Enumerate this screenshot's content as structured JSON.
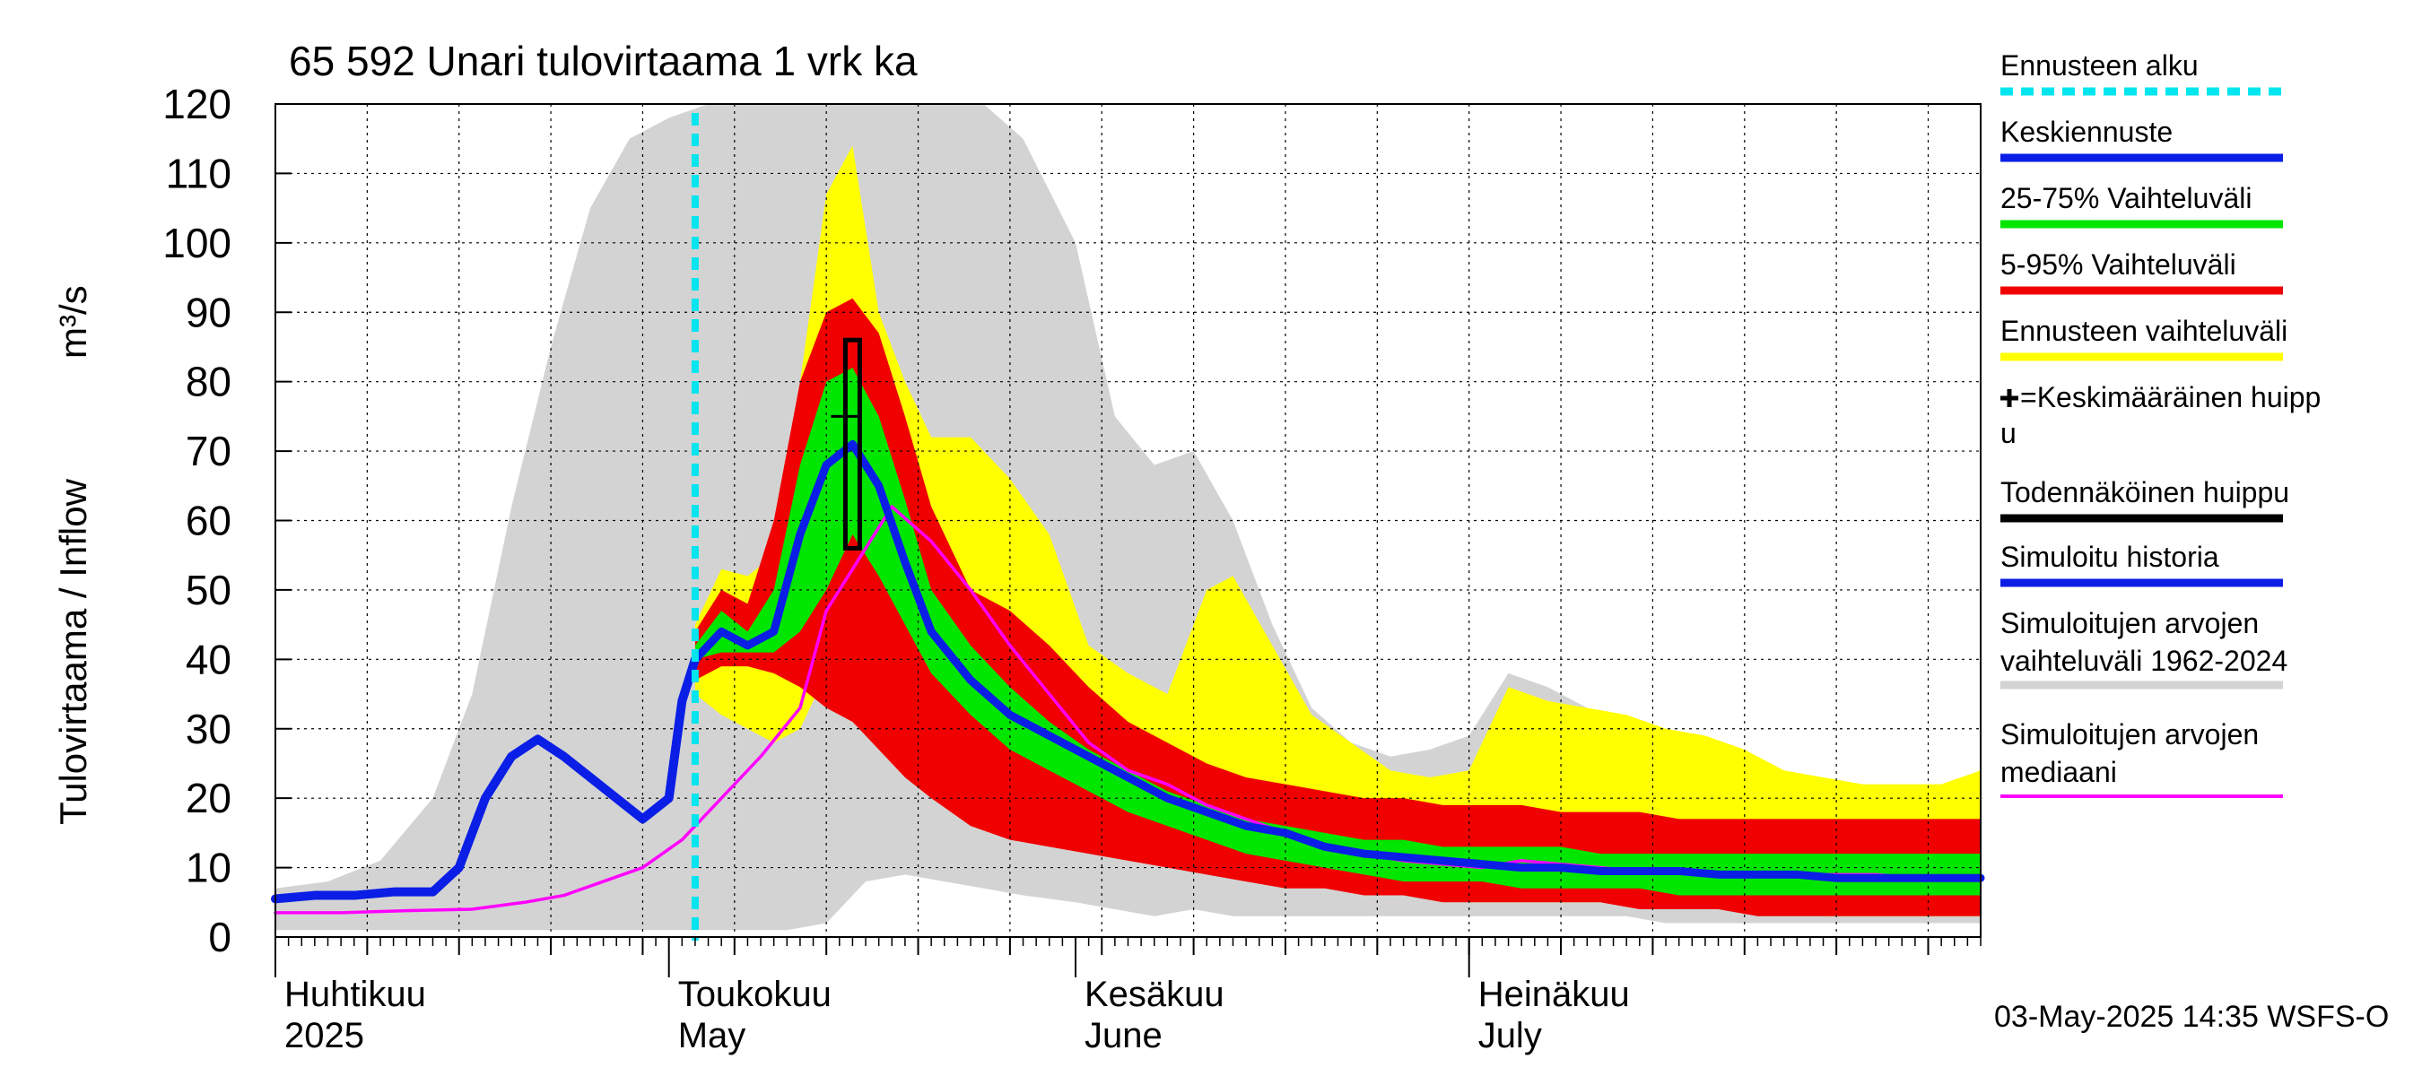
{
  "chart_data": {
    "type": "area",
    "title": "65 592 Unari tulovirtaama 1 vrk ka",
    "ylabel": "Tulovirtaama / Inflow",
    "yunit": "m³/s",
    "ylim": [
      0,
      120
    ],
    "yticks": [
      0,
      10,
      20,
      30,
      40,
      50,
      60,
      70,
      80,
      90,
      100,
      110,
      120
    ],
    "xlim": [
      "2025-04-01",
      "2025-08-09"
    ],
    "grid": true,
    "legend_position": "right",
    "month_labels": [
      {
        "date": "2025-04-01",
        "fi": "Huhtikuu",
        "en": "2025"
      },
      {
        "date": "2025-05-01",
        "fi": "Toukokuu",
        "en": "May"
      },
      {
        "date": "2025-06-01",
        "fi": "Kesäkuu",
        "en": "June"
      },
      {
        "date": "2025-07-01",
        "fi": "Heinäkuu",
        "en": "July"
      }
    ],
    "forecast_start": "2025-05-03",
    "mean_peak": {
      "date": "2025-05-15",
      "value": 75
    },
    "probable_peak": {
      "date": "2025-05-15",
      "low": 56,
      "high": 86
    },
    "timestamp": "03-May-2025 14:35 WSFS-O",
    "legend": [
      {
        "key": "forecast_start",
        "label": "Ennusteen alku",
        "color": "#00e5ee",
        "style": "dashed"
      },
      {
        "key": "mean_forecast",
        "label": "Keskiennuste",
        "color": "#0a1ee6"
      },
      {
        "key": "range_25_75",
        "label": "25-75% Vaihteluväli",
        "color": "#00e600"
      },
      {
        "key": "range_5_95",
        "label": "5-95% Vaihteluväli",
        "color": "#f00000"
      },
      {
        "key": "forecast_range",
        "label": "Ennusteen vaihteluväli",
        "color": "#ffff00"
      },
      {
        "key": "mean_peak",
        "label": "=Keskimääräinen huippu",
        "color": "#000000",
        "marker": "plus"
      },
      {
        "key": "probable_peak",
        "label": "Todennäköinen huippu",
        "color": "#000000"
      },
      {
        "key": "simulated_history",
        "label": "Simuloitu historia",
        "color": "#0a1ee6"
      },
      {
        "key": "hist_range",
        "label": "Simuloitujen arvojen vaihteluväli 1962-2024",
        "color": "#d3d3d3"
      },
      {
        "key": "hist_median",
        "label": "Simuloitujen arvojen mediaani",
        "color": "#ff00ff"
      }
    ],
    "hist_range": {
      "x": [
        "2025-04-01",
        "2025-04-05",
        "2025-04-09",
        "2025-04-13",
        "2025-04-16",
        "2025-04-19",
        "2025-04-22",
        "2025-04-25",
        "2025-04-28",
        "2025-05-01",
        "2025-05-04",
        "2025-05-07",
        "2025-05-10",
        "2025-05-13",
        "2025-05-16",
        "2025-05-19",
        "2025-05-22",
        "2025-05-25",
        "2025-05-28",
        "2025-06-01",
        "2025-06-04",
        "2025-06-07",
        "2025-06-10",
        "2025-06-13",
        "2025-06-16",
        "2025-06-19",
        "2025-06-22",
        "2025-06-25",
        "2025-06-28",
        "2025-07-01",
        "2025-07-04",
        "2025-07-07",
        "2025-07-10",
        "2025-07-13",
        "2025-07-16",
        "2025-07-19",
        "2025-07-22",
        "2025-07-25",
        "2025-07-28",
        "2025-07-31",
        "2025-08-03",
        "2025-08-06",
        "2025-08-09"
      ],
      "low": [
        1,
        1,
        1,
        1,
        1,
        1,
        1,
        1,
        1,
        1,
        1,
        1,
        1,
        2,
        8,
        9,
        8,
        7,
        6,
        5,
        4,
        3,
        4,
        3,
        3,
        3,
        3,
        3,
        3,
        3,
        3,
        3,
        3,
        3,
        2,
        2,
        2,
        2,
        2,
        2,
        2,
        2,
        2
      ],
      "high": [
        7,
        8,
        11,
        20,
        35,
        62,
        85,
        105,
        115,
        118,
        120,
        120,
        120,
        120,
        120,
        120,
        120,
        120,
        115,
        100,
        75,
        68,
        70,
        60,
        45,
        33,
        28,
        26,
        27,
        29,
        38,
        36,
        33,
        28,
        24,
        22,
        20,
        20,
        20,
        21,
        21,
        21,
        21
      ]
    },
    "forecast_range": {
      "x": [
        "2025-05-03",
        "2025-05-05",
        "2025-05-07",
        "2025-05-09",
        "2025-05-11",
        "2025-05-13",
        "2025-05-15",
        "2025-05-17",
        "2025-05-19",
        "2025-05-21",
        "2025-05-24",
        "2025-05-27",
        "2025-05-30",
        "2025-06-02",
        "2025-06-05",
        "2025-06-08",
        "2025-06-11",
        "2025-06-13",
        "2025-06-16",
        "2025-06-19",
        "2025-06-22",
        "2025-06-25",
        "2025-06-28",
        "2025-07-01",
        "2025-07-04",
        "2025-07-07",
        "2025-07-10",
        "2025-07-13",
        "2025-07-16",
        "2025-07-19",
        "2025-07-22",
        "2025-07-25",
        "2025-07-28",
        "2025-07-31",
        "2025-08-03",
        "2025-08-06",
        "2025-08-09"
      ],
      "low": [
        35,
        32,
        30,
        28,
        30,
        38,
        40,
        36,
        33,
        30,
        26,
        22,
        19,
        16,
        14,
        12,
        11,
        10,
        9,
        8,
        7,
        6,
        6,
        5,
        5,
        5,
        5,
        5,
        4,
        4,
        4,
        4,
        3,
        3,
        3,
        3,
        3
      ],
      "high": [
        45,
        53,
        52,
        55,
        80,
        107,
        114,
        90,
        80,
        72,
        72,
        66,
        58,
        42,
        38,
        35,
        50,
        52,
        42,
        32,
        28,
        24,
        23,
        24,
        36,
        34,
        33,
        32,
        30,
        29,
        27,
        24,
        23,
        22,
        22,
        22,
        24
      ]
    },
    "range_5_95": {
      "x": [
        "2025-05-03",
        "2025-05-05",
        "2025-05-07",
        "2025-05-09",
        "2025-05-11",
        "2025-05-13",
        "2025-05-15",
        "2025-05-17",
        "2025-05-19",
        "2025-05-21",
        "2025-05-24",
        "2025-05-27",
        "2025-05-30",
        "2025-06-02",
        "2025-06-05",
        "2025-06-08",
        "2025-06-11",
        "2025-06-14",
        "2025-06-17",
        "2025-06-20",
        "2025-06-23",
        "2025-06-26",
        "2025-06-29",
        "2025-07-02",
        "2025-07-05",
        "2025-07-08",
        "2025-07-11",
        "2025-07-14",
        "2025-07-17",
        "2025-07-20",
        "2025-07-23",
        "2025-07-26",
        "2025-07-29",
        "2025-08-01",
        "2025-08-04",
        "2025-08-06",
        "2025-08-09"
      ],
      "low": [
        37,
        39,
        39,
        38,
        36,
        33,
        31,
        27,
        23,
        20,
        16,
        14,
        13,
        12,
        11,
        10,
        9,
        8,
        7,
        7,
        6,
        6,
        5,
        5,
        5,
        5,
        5,
        4,
        4,
        4,
        3,
        3,
        3,
        3,
        3,
        3,
        3
      ],
      "high": [
        44,
        50,
        48,
        60,
        80,
        90,
        92,
        87,
        75,
        62,
        50,
        47,
        42,
        36,
        31,
        28,
        25,
        23,
        22,
        21,
        20,
        20,
        19,
        19,
        19,
        18,
        18,
        18,
        17,
        17,
        17,
        17,
        17,
        17,
        17,
        17,
        17
      ]
    },
    "range_25_75": {
      "x": [
        "2025-05-03",
        "2025-05-05",
        "2025-05-07",
        "2025-05-09",
        "2025-05-11",
        "2025-05-13",
        "2025-05-15",
        "2025-05-17",
        "2025-05-19",
        "2025-05-21",
        "2025-05-24",
        "2025-05-27",
        "2025-05-30",
        "2025-06-02",
        "2025-06-05",
        "2025-06-08",
        "2025-06-11",
        "2025-06-14",
        "2025-06-17",
        "2025-06-20",
        "2025-06-23",
        "2025-06-26",
        "2025-06-29",
        "2025-07-02",
        "2025-07-05",
        "2025-07-08",
        "2025-07-11",
        "2025-07-14",
        "2025-07-17",
        "2025-07-20",
        "2025-07-23",
        "2025-07-26",
        "2025-07-29",
        "2025-08-01",
        "2025-08-04",
        "2025-08-06",
        "2025-08-09"
      ],
      "low": [
        40,
        41,
        41,
        41,
        44,
        50,
        58,
        52,
        45,
        38,
        32,
        27,
        24,
        21,
        18,
        16,
        14,
        12,
        11,
        10,
        9,
        8,
        8,
        8,
        7,
        7,
        7,
        7,
        6,
        6,
        6,
        6,
        6,
        6,
        6,
        6,
        6
      ],
      "high": [
        42,
        47,
        44,
        50,
        68,
        80,
        82,
        75,
        63,
        50,
        42,
        36,
        31,
        27,
        24,
        21,
        19,
        17,
        16,
        15,
        14,
        14,
        13,
        13,
        13,
        13,
        12,
        12,
        12,
        12,
        12,
        12,
        12,
        12,
        12,
        12,
        12
      ]
    },
    "simulated_history": {
      "x": [
        "2025-04-01",
        "2025-04-04",
        "2025-04-07",
        "2025-04-10",
        "2025-04-13",
        "2025-04-15",
        "2025-04-17",
        "2025-04-19",
        "2025-04-21",
        "2025-04-23",
        "2025-04-25",
        "2025-04-27",
        "2025-04-29",
        "2025-05-01",
        "2025-05-02",
        "2025-05-03"
      ],
      "y": [
        5.5,
        6,
        6,
        6.5,
        6.5,
        10,
        20,
        26,
        28.5,
        26,
        23,
        20,
        17,
        20,
        34,
        40
      ]
    },
    "mean_forecast": {
      "x": [
        "2025-05-03",
        "2025-05-05",
        "2025-05-07",
        "2025-05-09",
        "2025-05-11",
        "2025-05-13",
        "2025-05-15",
        "2025-05-17",
        "2025-05-19",
        "2025-05-21",
        "2025-05-24",
        "2025-05-27",
        "2025-05-30",
        "2025-06-02",
        "2025-06-05",
        "2025-06-08",
        "2025-06-11",
        "2025-06-14",
        "2025-06-17",
        "2025-06-20",
        "2025-06-23",
        "2025-06-26",
        "2025-06-29",
        "2025-07-02",
        "2025-07-05",
        "2025-07-08",
        "2025-07-11",
        "2025-07-14",
        "2025-07-17",
        "2025-07-20",
        "2025-07-23",
        "2025-07-26",
        "2025-07-29",
        "2025-08-01",
        "2025-08-04",
        "2025-08-06",
        "2025-08-09"
      ],
      "y": [
        40,
        44,
        42,
        44,
        58,
        68,
        71,
        65,
        54,
        44,
        37,
        32,
        29,
        26,
        23,
        20,
        18,
        16,
        15,
        13,
        12,
        11.5,
        11,
        10.5,
        10,
        10,
        9.5,
        9.5,
        9.5,
        9,
        9,
        9,
        8.5,
        8.5,
        8.5,
        8.5,
        8.5
      ]
    },
    "hist_median": {
      "x": [
        "2025-04-01",
        "2025-04-06",
        "2025-04-11",
        "2025-04-16",
        "2025-04-20",
        "2025-04-23",
        "2025-04-26",
        "2025-04-29",
        "2025-05-02",
        "2025-05-05",
        "2025-05-08",
        "2025-05-11",
        "2025-05-13",
        "2025-05-15",
        "2025-05-18",
        "2025-05-21",
        "2025-05-24",
        "2025-05-27",
        "2025-05-30",
        "2025-06-02",
        "2025-06-05",
        "2025-06-08",
        "2025-06-11",
        "2025-06-14",
        "2025-06-17",
        "2025-06-20",
        "2025-06-23",
        "2025-06-26",
        "2025-06-29",
        "2025-07-02",
        "2025-07-05",
        "2025-07-08",
        "2025-07-11",
        "2025-07-14",
        "2025-07-17",
        "2025-07-20",
        "2025-07-23",
        "2025-07-26",
        "2025-07-29",
        "2025-08-01",
        "2025-08-04",
        "2025-08-06",
        "2025-08-09"
      ],
      "y": [
        3.5,
        3.5,
        3.8,
        4,
        5,
        6,
        8,
        10,
        14,
        20,
        26,
        33,
        47,
        53,
        62,
        57,
        50,
        42,
        35,
        28,
        24,
        22,
        19,
        17,
        15,
        13,
        12,
        11,
        10.5,
        10,
        11,
        10.5,
        10,
        9.5,
        9.5,
        9,
        9,
        9,
        9,
        9,
        8.5,
        8.5,
        8.5
      ]
    }
  }
}
